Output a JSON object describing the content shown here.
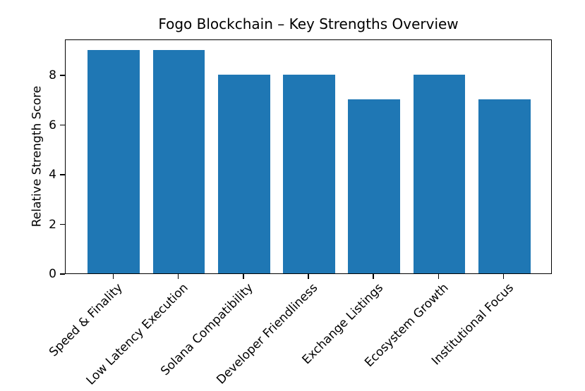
{
  "figure": {
    "background": "#ffffff",
    "text_color": "#000000",
    "axis_color": "#000000"
  },
  "chart_data": {
    "type": "bar",
    "title": "Fogo Blockchain – Key Strengths Overview",
    "ylabel": "Relative Strength Score",
    "xlabel": "",
    "categories": [
      "Speed & Finality",
      "Low Latency Execution",
      "Solana Compatibility",
      "Developer Friendliness",
      "Exchange Listings",
      "Ecosystem Growth",
      "Institutional Focus"
    ],
    "values": [
      9,
      9,
      8,
      8,
      7,
      8,
      7
    ],
    "yticks": [
      0,
      2,
      4,
      6,
      8
    ],
    "ylim": [
      0,
      9.45
    ],
    "bar_color": "#1f77b4",
    "bar_width_ratio": 0.8,
    "grid": false,
    "legend": null,
    "xtick_rotation_deg": 45
  }
}
